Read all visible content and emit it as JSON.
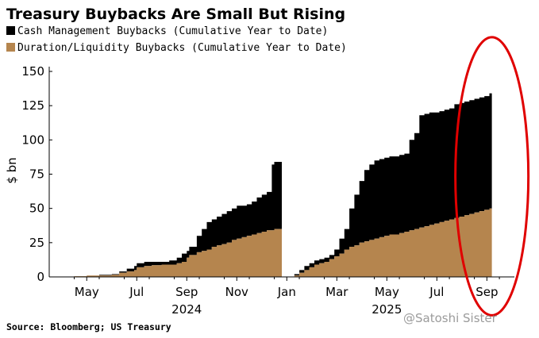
{
  "chart_data": {
    "type": "area",
    "stacked": true,
    "title": "Treasury Buybacks Are Small But Rising",
    "ylabel": "$ bn",
    "ylim": [
      0,
      150
    ],
    "yticks": [
      0,
      25,
      50,
      75,
      100,
      125,
      150
    ],
    "legend": [
      {
        "label": "Cash Management Buybacks (Cumulative Year to Date)",
        "color": "#000000"
      },
      {
        "label": "Duration/Liquidity Buybacks (Cumulative Year to Date)",
        "color": "#b5854e"
      }
    ],
    "x_ticks": [
      {
        "label": "May",
        "month": 4.5
      },
      {
        "label": "Jul",
        "month": 6.5
      },
      {
        "label": "Sep",
        "month": 8.5
      },
      {
        "label": "Nov",
        "month": 10.5
      },
      {
        "label": "Jan",
        "month": 12.5
      },
      {
        "label": "Mar",
        "month": 14.5
      },
      {
        "label": "May",
        "month": 16.5
      },
      {
        "label": "Jul",
        "month": 18.5
      },
      {
        "label": "Sep",
        "month": 20.5
      }
    ],
    "year_labels": [
      {
        "label": "2024",
        "month": 8.5
      },
      {
        "label": "2025",
        "month": 16.5
      }
    ],
    "segments": [
      {
        "year": "2024",
        "x": [
          3.6,
          4.0,
          4.5,
          5.0,
          5.5,
          5.8,
          6.1,
          6.4,
          6.5,
          6.8,
          7.1,
          7.5,
          7.8,
          8.1,
          8.3,
          8.5,
          8.6,
          8.9,
          9.1,
          9.3,
          9.5,
          9.7,
          9.9,
          10.1,
          10.3,
          10.5,
          10.7,
          10.9,
          11.1,
          11.3,
          11.5,
          11.7,
          11.9,
          12.0,
          12.3
        ],
        "duration_liquidity": [
          0,
          0.5,
          1,
          1,
          1.5,
          3,
          4,
          5,
          7,
          8,
          8.5,
          9,
          9,
          10,
          11,
          14,
          16,
          18,
          19,
          20,
          22,
          23,
          24,
          25,
          27,
          28,
          29,
          30,
          31,
          32,
          33,
          34,
          34,
          35,
          35
        ],
        "total": [
          0,
          0.5,
          1,
          1.5,
          2,
          4,
          6,
          8,
          10,
          11,
          11,
          11,
          12,
          14,
          17,
          19,
          22,
          30,
          35,
          40,
          42,
          44,
          46,
          48,
          50,
          52,
          52,
          53,
          55,
          58,
          60,
          62,
          82,
          84,
          84
        ]
      },
      {
        "year": "2025",
        "x": [
          12.6,
          12.8,
          13.0,
          13.2,
          13.4,
          13.6,
          13.8,
          14.0,
          14.2,
          14.4,
          14.6,
          14.8,
          15.0,
          15.2,
          15.4,
          15.6,
          15.8,
          16.0,
          16.2,
          16.4,
          16.6,
          16.8,
          17.0,
          17.2,
          17.4,
          17.6,
          17.8,
          18.0,
          18.2,
          18.4,
          18.6,
          18.8,
          19.0,
          19.2,
          19.4,
          19.6,
          19.8,
          20.0,
          20.2,
          20.4,
          20.6,
          20.7
        ],
        "duration_liquidity": [
          0,
          1,
          3,
          5,
          7,
          9,
          10,
          11,
          13,
          15,
          17,
          20,
          22,
          23,
          25,
          26,
          27,
          28,
          29,
          30,
          31,
          31,
          32,
          33,
          34,
          35,
          36,
          37,
          38,
          39,
          40,
          41,
          42,
          43,
          44,
          45,
          46,
          47,
          48,
          49,
          50,
          51
        ],
        "total": [
          0,
          2,
          5,
          8,
          10,
          12,
          13,
          14,
          16,
          20,
          28,
          35,
          50,
          60,
          70,
          78,
          82,
          85,
          86,
          87,
          88,
          88,
          89,
          90,
          100,
          105,
          118,
          119,
          120,
          120,
          121,
          122,
          123,
          126,
          127,
          128,
          129,
          130,
          131,
          132,
          134,
          137
        ]
      }
    ],
    "annotations": [
      {
        "type": "ellipse",
        "color": "#e00000",
        "month_center": 20.7,
        "value_range": [
          -28,
          175
        ]
      }
    ],
    "source": "Source: Bloomberg; US Treasury",
    "watermark": "@Satoshi Sister"
  }
}
